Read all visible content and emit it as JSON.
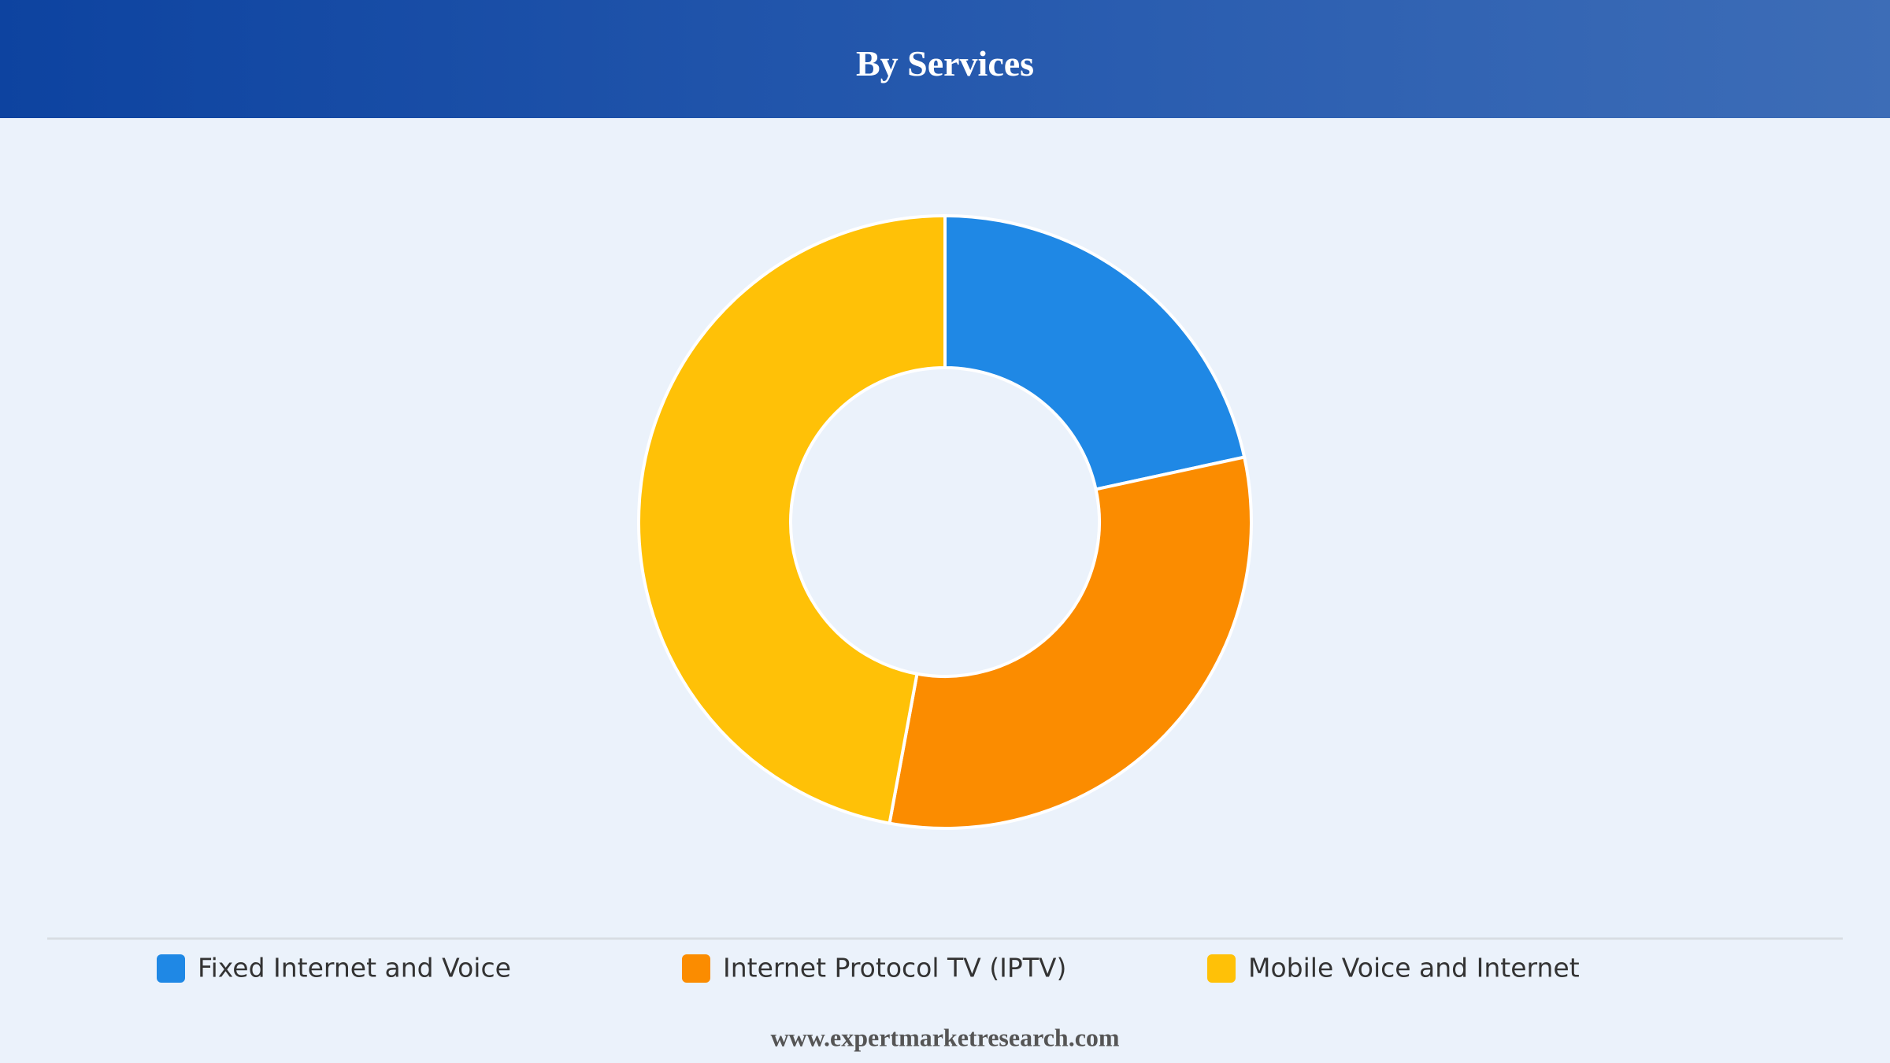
{
  "chart_data": {
    "type": "donut",
    "title": "By Services",
    "categories": [
      "Fixed Internet and Voice",
      "Internet Protocol TV (IPTV)",
      "Mobile Voice and Internet"
    ],
    "values": [
      21.6,
      31.3,
      47.1
    ],
    "colors": [
      "#1f88e5",
      "#fb8c00",
      "#ffc107"
    ]
  },
  "footer": "www.expertmarketresearch.com"
}
